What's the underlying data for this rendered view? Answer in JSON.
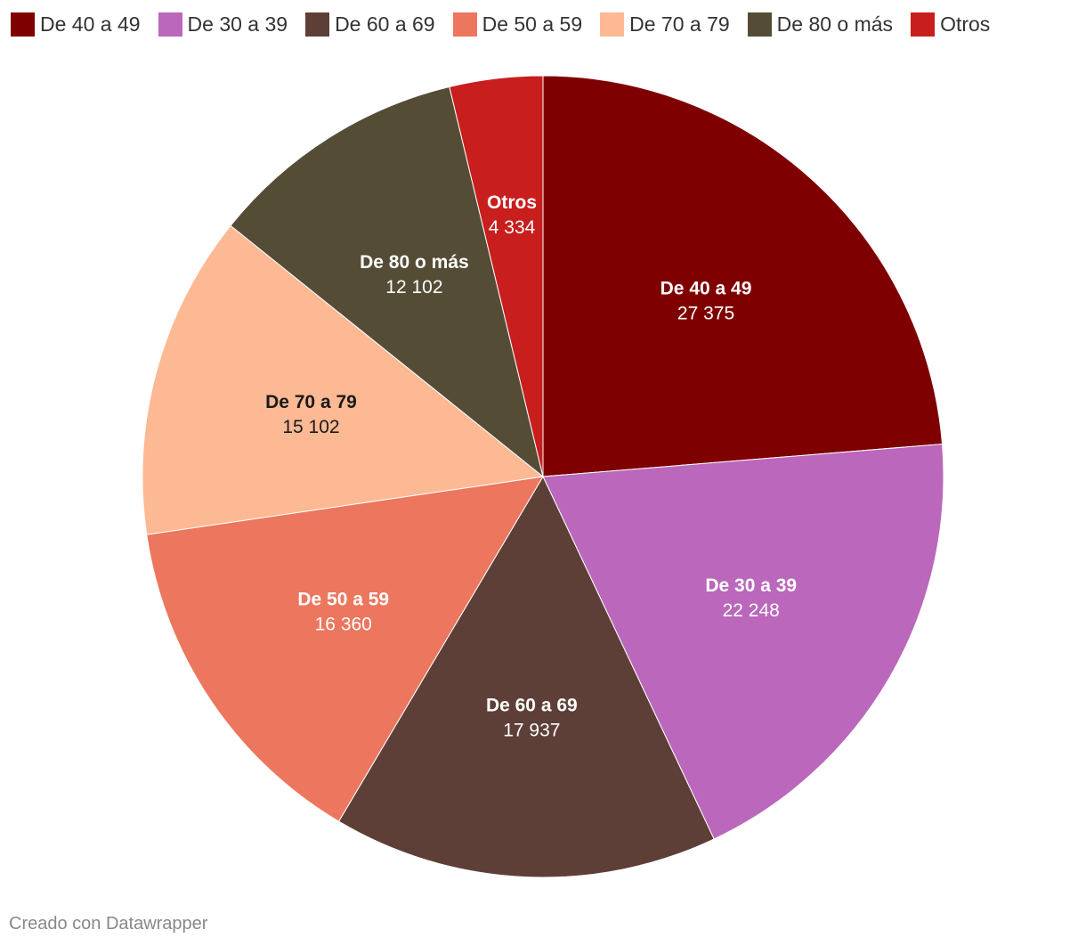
{
  "chart_data": {
    "type": "pie",
    "title": "",
    "categories": [
      "De 40 a 49",
      "De 30 a 39",
      "De 60 a 69",
      "De 50 a 59",
      "De 70 a 79",
      "De 80 o más",
      "Otros"
    ],
    "values": [
      27375,
      22248,
      17937,
      16360,
      15102,
      12102,
      4334
    ],
    "value_labels": [
      "27 375",
      "22 248",
      "17 937",
      "16 360",
      "15 102",
      "12 102",
      "4 334"
    ],
    "colors": [
      "#7f0000",
      "#ba67bc",
      "#5e3f38",
      "#ec765e",
      "#fdb994",
      "#544c35",
      "#c81e1e"
    ],
    "label_colors": [
      "#ffffff",
      "#ffffff",
      "#ffffff",
      "#ffffff",
      "#1a1a1a",
      "#ffffff",
      "#ffffff"
    ],
    "legend_position": "top-left"
  },
  "footer": {
    "credit": "Creado con Datawrapper"
  }
}
